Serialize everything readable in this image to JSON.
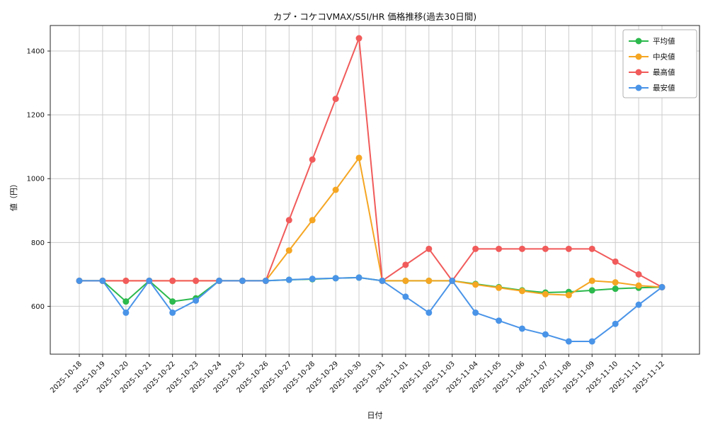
{
  "chart": {
    "title": "カプ・コケコVMAX/S5I/HR 価格推移(過去30日間)",
    "xlabel": "日付",
    "ylabel": "値（円）"
  },
  "chart_data": {
    "type": "line",
    "title": "カプ・コケコVMAX/S5I/HR 価格推移(過去30日間)",
    "xlabel": "日付",
    "ylabel": "値（円）",
    "grid": true,
    "legend_position": "upper right",
    "ylim": [
      450,
      1480
    ],
    "yticks": [
      600,
      800,
      1000,
      1200,
      1400
    ],
    "categories": [
      "2025-10-18",
      "2025-10-19",
      "2025-10-20",
      "2025-10-21",
      "2025-10-22",
      "2025-10-23",
      "2025-10-24",
      "2025-10-25",
      "2025-10-26",
      "2025-10-27",
      "2025-10-28",
      "2025-10-29",
      "2025-10-30",
      "2025-10-31",
      "2025-11-01",
      "2025-11-02",
      "2025-11-03",
      "2025-11-04",
      "2025-11-05",
      "2025-11-06",
      "2025-11-07",
      "2025-11-08",
      "2025-11-09",
      "2025-11-10",
      "2025-11-11",
      "2025-11-12"
    ],
    "series": [
      {
        "name": "平均値",
        "key": "average",
        "color": "#2cb94d",
        "values": [
          680,
          680,
          615,
          680,
          615,
          625,
          680,
          680,
          680,
          683,
          685,
          688,
          690,
          680,
          680,
          680,
          680,
          670,
          660,
          650,
          643,
          645,
          650,
          655,
          658,
          660
        ]
      },
      {
        "name": "中央値",
        "key": "median",
        "color": "#f5a623",
        "values": [
          680,
          680,
          680,
          680,
          680,
          680,
          680,
          680,
          680,
          775,
          870,
          965,
          1065,
          680,
          680,
          680,
          680,
          668,
          658,
          648,
          638,
          635,
          680,
          675,
          665,
          660
        ]
      },
      {
        "name": "最高値",
        "key": "max",
        "color": "#f15b5b",
        "values": [
          680,
          680,
          680,
          680,
          680,
          680,
          680,
          680,
          680,
          870,
          1060,
          1250,
          1440,
          680,
          730,
          780,
          680,
          780,
          780,
          780,
          780,
          780,
          780,
          740,
          700,
          660
        ]
      },
      {
        "name": "最安値",
        "key": "min",
        "color": "#4a94e8",
        "values": [
          680,
          680,
          580,
          680,
          580,
          618,
          680,
          680,
          680,
          683,
          686,
          688,
          690,
          680,
          630,
          580,
          680,
          580,
          555,
          530,
          512,
          490,
          490,
          545,
          605,
          660
        ]
      }
    ],
    "style": {
      "grid_color": "#cccccc",
      "spine_color": "#262626",
      "legend_border": "#b0b0b0",
      "background": "#ffffff"
    }
  }
}
